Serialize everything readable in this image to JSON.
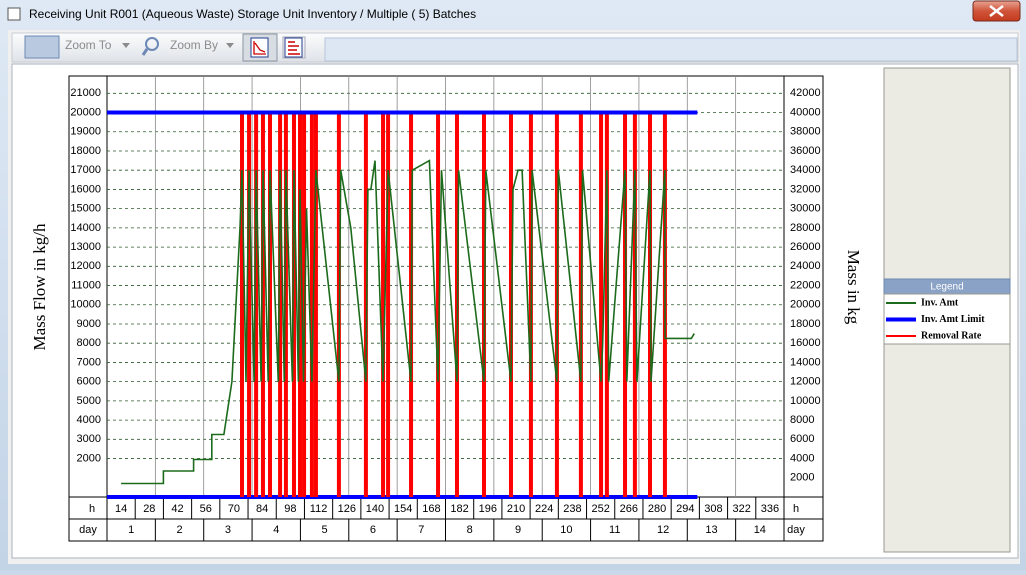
{
  "window": {
    "title": "Receiving Unit R001 (Aqueous Waste) Storage Unit Inventory / Multiple ( 5) Batches"
  },
  "toolbar": {
    "buttons": [
      "Zoom To",
      "Zoom By"
    ]
  },
  "chart_data": {
    "type": "line",
    "ylabel": "Mass Flow in kg/h",
    "y2label": "Mass in kg",
    "x_unit_label": "h",
    "day_label": "day",
    "xlim": [
      0,
      336
    ],
    "xticks": [
      14,
      28,
      42,
      56,
      70,
      84,
      98,
      112,
      126,
      140,
      154,
      168,
      182,
      196,
      210,
      224,
      238,
      252,
      266,
      280,
      294,
      308,
      322,
      336
    ],
    "days": [
      1,
      2,
      3,
      4,
      5,
      6,
      7,
      8,
      9,
      10,
      11,
      12,
      13,
      14
    ],
    "ylim": [
      0,
      21900
    ],
    "yticks": [
      2000,
      3000,
      4000,
      5000,
      6000,
      7000,
      8000,
      9000,
      10000,
      11000,
      12000,
      13000,
      14000,
      15000,
      16000,
      17000,
      18000,
      19000,
      20000,
      21000
    ],
    "y2lim": [
      0,
      43800
    ],
    "y2ticks": [
      2000,
      4000,
      6000,
      8000,
      10000,
      12000,
      14000,
      16000,
      18000,
      20000,
      22000,
      24000,
      26000,
      28000,
      30000,
      32000,
      34000,
      36000,
      38000,
      40000,
      42000
    ],
    "grid": true,
    "legend_title": "Legend",
    "series": [
      {
        "name": "Inv. Amt",
        "color": "#1c6b1c",
        "axis": "y2",
        "style": "line",
        "x": [
          7,
          28,
          28,
          43,
          43,
          52,
          52,
          58,
          62,
          66,
          67,
          69,
          70.5,
          73,
          74,
          76.5,
          77.4,
          80,
          80.9,
          85,
          85.9,
          88,
          88.8,
          92,
          92.8,
          95,
          95.8,
          97.5,
          99,
          101.7,
          103.7,
          115.1,
          116,
          121,
          128.5,
          129.5,
          131,
          133,
          137,
          139.5,
          150.9,
          151.5,
          160,
          164.3,
          166,
          173.7,
          174.5,
          187.1,
          188,
          200.5,
          201.5,
          204,
          206,
          210.4,
          211,
          223.3,
          224,
          235.2,
          236,
          245.2,
          246,
          248.1,
          249,
          257.1,
          258,
          262,
          263,
          269.5,
          270,
          276.9,
          277,
          290,
          291.5
        ],
        "values": [
          1400,
          1400,
          2700,
          2700,
          3900,
          3900,
          6500,
          6500,
          12000,
          28000,
          34000,
          12000,
          34000,
          12000,
          34000,
          12000,
          34000,
          12000,
          34000,
          12000,
          34000,
          12000,
          34000,
          12000,
          34000,
          12000,
          32000,
          12000,
          30000,
          12000,
          34000,
          12000,
          34000,
          28000,
          12000,
          32000,
          32000,
          35000,
          12000,
          34000,
          12000,
          34000,
          35000,
          12000,
          34000,
          12000,
          34000,
          12000,
          34000,
          12000,
          32000,
          34000,
          34000,
          12000,
          34000,
          12000,
          34000,
          12000,
          34000,
          12000,
          16000,
          34000,
          12000,
          34000,
          12000,
          34000,
          12000,
          34000,
          12000,
          34000,
          16500,
          16500,
          17000
        ]
      },
      {
        "name": "Inv. Amt Limit",
        "color": "#0000ff",
        "axis": "y2",
        "style": "line",
        "x": [
          0,
          293
        ],
        "values": [
          40000,
          40000
        ]
      },
      {
        "name": "Removal Rate",
        "color": "#ff0000",
        "style": "spike",
        "x": [
          67,
          70.5,
          74,
          77.4,
          80.9,
          85.9,
          88.8,
          92.8,
          95.8,
          97.8,
          101.7,
          103.7,
          115.1,
          128.5,
          137,
          139.5,
          150.9,
          164.3,
          173.7,
          187.1,
          200.5,
          210.4,
          223.3,
          235.2,
          245.2,
          248.1,
          257.1,
          262,
          269.5,
          276.9
        ],
        "values": [
          20000,
          20000,
          20000,
          20000,
          20000,
          20000,
          20000,
          20000,
          20000,
          20000,
          20000,
          20000,
          20000,
          20000,
          20000,
          20000,
          20000,
          20000,
          20000,
          20000,
          20000,
          20000,
          20000,
          20000,
          20000,
          20000,
          20000,
          20000,
          20000,
          20000
        ]
      }
    ]
  }
}
